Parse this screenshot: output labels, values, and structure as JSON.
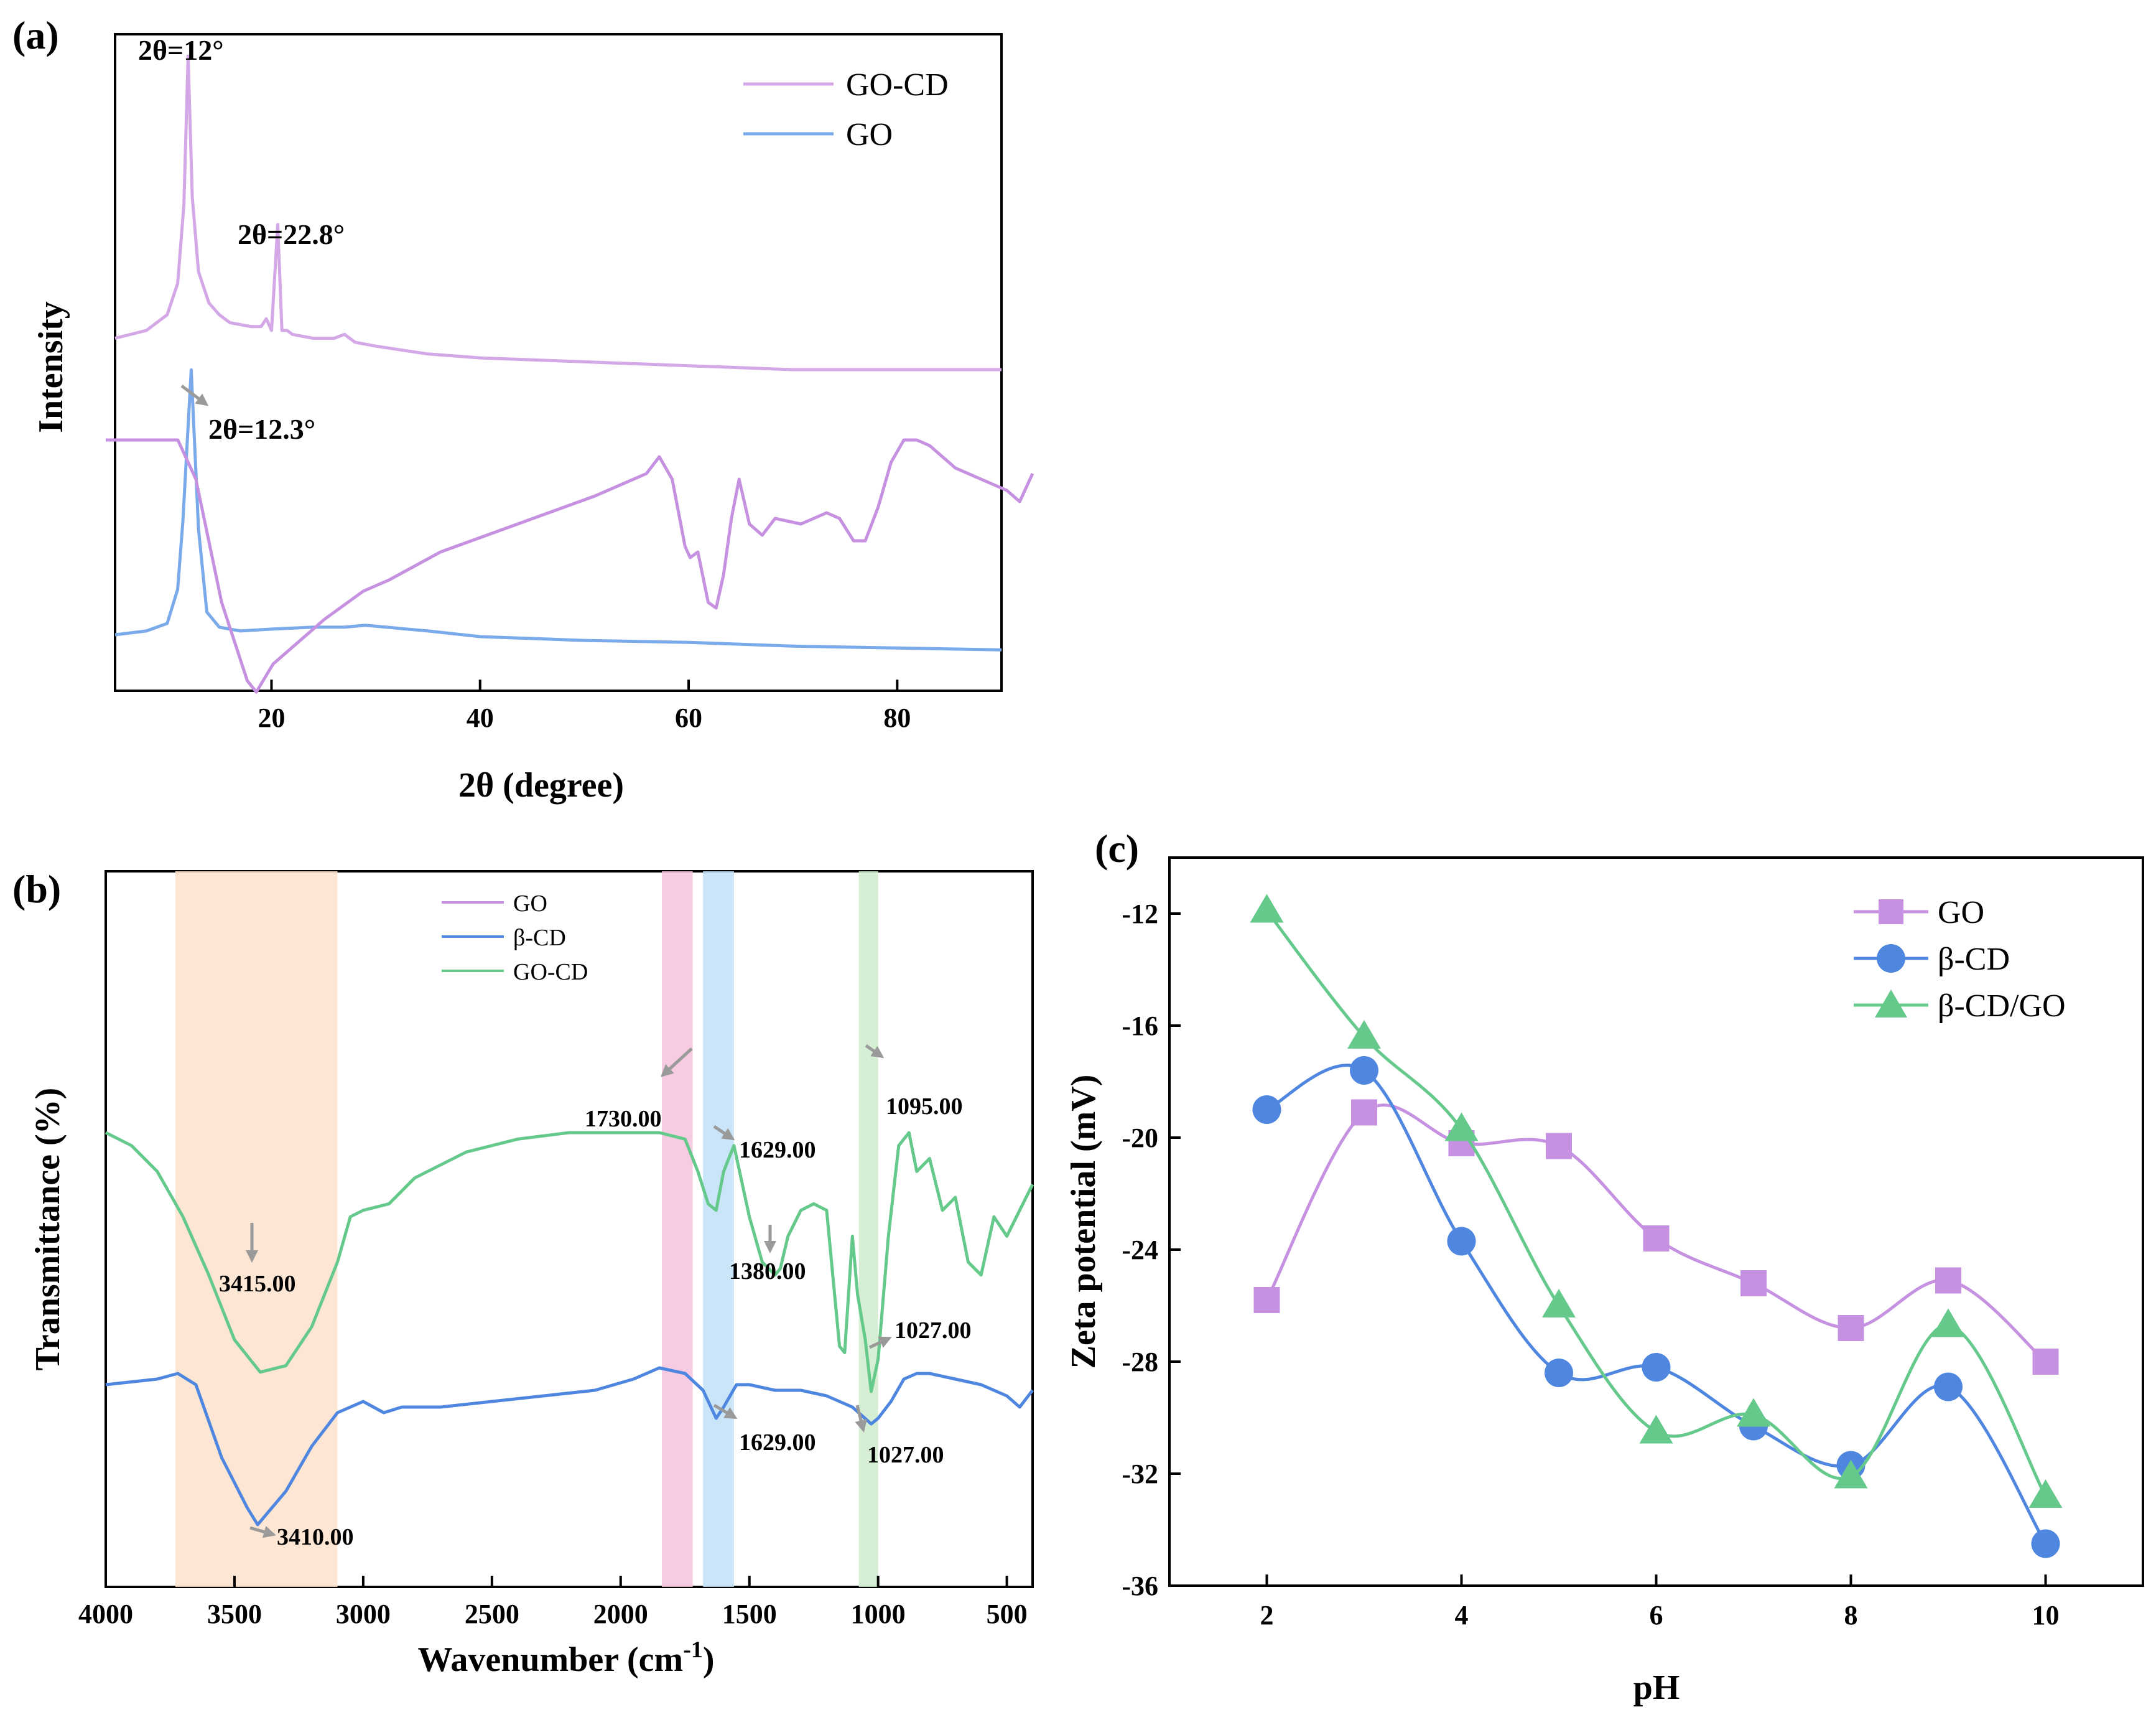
{
  "chart_data": [
    {
      "panel": "(a)",
      "type": "line",
      "xlabel": "2θ (degree)",
      "ylabel": "Intensity",
      "xlim": [
        5,
        90
      ],
      "xticks": [
        20,
        40,
        60,
        80
      ],
      "legend_position": "top-right",
      "legend": [
        "GO-CD",
        "GO"
      ],
      "annotations": [
        "2θ=12°",
        "2θ=22.8°",
        "2θ=12.3°"
      ],
      "series": [
        {
          "name": "GO-CD",
          "color": "#d4a8e6",
          "x": [
            5,
            8,
            10,
            11,
            11.6,
            12,
            12.4,
            13,
            14,
            15,
            16,
            18,
            19,
            19.5,
            20,
            20.6,
            21,
            21.5,
            22,
            24,
            26,
            27,
            28,
            30,
            35,
            40,
            50,
            60,
            70,
            80,
            90
          ],
          "y": [
            0.28,
            0.3,
            0.34,
            0.42,
            0.62,
            1.0,
            0.64,
            0.45,
            0.37,
            0.34,
            0.32,
            0.31,
            0.31,
            0.33,
            0.3,
            0.57,
            0.3,
            0.3,
            0.29,
            0.28,
            0.28,
            0.29,
            0.27,
            0.26,
            0.24,
            0.23,
            0.22,
            0.21,
            0.2,
            0.2,
            0.2
          ]
        },
        {
          "name": "GO",
          "color": "#7aaaea",
          "x": [
            5,
            8,
            10,
            11,
            11.5,
            12.3,
            13,
            13.8,
            15,
            17,
            20,
            24,
            27,
            29,
            31,
            35,
            40,
            50,
            60,
            70,
            80,
            90
          ],
          "y": [
            0.0,
            0.01,
            0.03,
            0.12,
            0.3,
            0.7,
            0.28,
            0.06,
            0.02,
            0.01,
            0.015,
            0.02,
            0.02,
            0.025,
            0.02,
            0.01,
            -0.005,
            -0.015,
            -0.02,
            -0.03,
            -0.035,
            -0.04
          ]
        }
      ]
    },
    {
      "panel": "(b)",
      "type": "line",
      "xlabel": "Wavenumber (cm",
      "xlabel_sup": "-1",
      "xlabel_close": ")",
      "ylabel": "Transmittance (%)",
      "xlim": [
        4000,
        400
      ],
      "xticks": [
        4000,
        3500,
        3000,
        2500,
        2000,
        1500,
        1000,
        500
      ],
      "legend_position": "top-center",
      "legend": [
        "GO",
        "β-CD",
        "GO-CD"
      ],
      "bands": [
        {
          "from": 3730,
          "to": 3100,
          "color": "#fde3cc"
        },
        {
          "from": 1840,
          "to": 1720,
          "color": "#f6c2dc"
        },
        {
          "from": 1680,
          "to": 1560,
          "color": "#bfe1f6"
        },
        {
          "from": 1075,
          "to": 1000,
          "color": "#cfeccd"
        }
      ],
      "annotations": [
        "3415.00",
        "1730.00",
        "1629.00",
        "1095.00",
        "1380.00",
        "1027.00",
        "1629.00",
        "1027.00",
        "3410.00"
      ],
      "series": [
        {
          "name": "GO",
          "color": "#c591e0",
          "x": [
            4000,
            3720,
            3650,
            3550,
            3450,
            3415,
            3350,
            3250,
            3150,
            3000,
            2900,
            2700,
            2400,
            2100,
            1900,
            1850,
            1800,
            1750,
            1730,
            1700,
            1660,
            1629,
            1600,
            1570,
            1540,
            1500,
            1450,
            1400,
            1300,
            1200,
            1150,
            1095,
            1050,
            1000,
            950,
            900,
            850,
            800,
            700,
            600,
            500,
            450,
            400
          ],
          "y": [
            0.87,
            0.87,
            0.8,
            0.58,
            0.44,
            0.42,
            0.47,
            0.51,
            0.55,
            0.6,
            0.62,
            0.67,
            0.72,
            0.77,
            0.81,
            0.84,
            0.8,
            0.68,
            0.66,
            0.67,
            0.58,
            0.57,
            0.63,
            0.73,
            0.8,
            0.72,
            0.7,
            0.73,
            0.72,
            0.74,
            0.73,
            0.69,
            0.69,
            0.75,
            0.83,
            0.87,
            0.87,
            0.86,
            0.82,
            0.8,
            0.78,
            0.76,
            0.81
          ]
        },
        {
          "name": "β-CD",
          "color": "#4f86e0",
          "x": [
            4000,
            3800,
            3720,
            3650,
            3550,
            3450,
            3410,
            3300,
            3200,
            3100,
            3000,
            2920,
            2850,
            2700,
            2500,
            2300,
            2100,
            1950,
            1850,
            1750,
            1680,
            1629,
            1600,
            1550,
            1500,
            1400,
            1300,
            1200,
            1100,
            1027,
            1000,
            950,
            900,
            850,
            800,
            700,
            600,
            500,
            450,
            400
          ],
          "y": [
            0.25,
            0.26,
            0.27,
            0.25,
            0.12,
            0.03,
            0.0,
            0.06,
            0.14,
            0.2,
            0.22,
            0.2,
            0.21,
            0.21,
            0.22,
            0.23,
            0.24,
            0.26,
            0.28,
            0.27,
            0.24,
            0.19,
            0.21,
            0.25,
            0.25,
            0.24,
            0.24,
            0.23,
            0.21,
            0.18,
            0.19,
            0.22,
            0.26,
            0.27,
            0.27,
            0.26,
            0.25,
            0.23,
            0.21,
            0.24
          ]
        },
        {
          "name": "GO-CD",
          "color": "#65c98c",
          "x": [
            4000,
            3900,
            3800,
            3700,
            3600,
            3500,
            3400,
            3300,
            3200,
            3100,
            3050,
            3000,
            2900,
            2800,
            2600,
            2400,
            2200,
            2000,
            1850,
            1750,
            1700,
            1660,
            1629,
            1600,
            1560,
            1500,
            1450,
            1400,
            1380,
            1350,
            1300,
            1250,
            1200,
            1150,
            1130,
            1100,
            1080,
            1050,
            1027,
            1000,
            960,
            920,
            880,
            850,
            800,
            750,
            700,
            650,
            600,
            550,
            500,
            450,
            400
          ],
          "y": [
            0.68,
            0.66,
            0.62,
            0.55,
            0.46,
            0.36,
            0.31,
            0.32,
            0.38,
            0.48,
            0.55,
            0.56,
            0.57,
            0.61,
            0.65,
            0.67,
            0.68,
            0.68,
            0.68,
            0.67,
            0.62,
            0.57,
            0.56,
            0.62,
            0.66,
            0.55,
            0.48,
            0.46,
            0.47,
            0.52,
            0.56,
            0.57,
            0.56,
            0.35,
            0.34,
            0.52,
            0.43,
            0.36,
            0.28,
            0.33,
            0.52,
            0.66,
            0.68,
            0.62,
            0.64,
            0.56,
            0.58,
            0.48,
            0.46,
            0.55,
            0.52,
            0.56,
            0.6
          ]
        }
      ]
    },
    {
      "panel": "(c)",
      "type": "line",
      "xlabel": "pH",
      "ylabel": "Zeta potential (mV)",
      "xlim": [
        1,
        11
      ],
      "ylim": [
        -36,
        -10
      ],
      "xticks": [
        2,
        4,
        6,
        8,
        10
      ],
      "yticks": [
        -12,
        -16,
        -20,
        -24,
        -28,
        -32,
        -36
      ],
      "legend_position": "top-right",
      "legend": [
        "GO",
        "β-CD",
        "β-CD/GO"
      ],
      "categories": [
        2,
        3,
        4,
        5,
        6,
        7,
        8,
        9,
        10
      ],
      "series": [
        {
          "name": "GO",
          "color": "#c591e0",
          "marker": "square",
          "values": [
            -25.8,
            -19.1,
            -20.2,
            -20.3,
            -23.6,
            -25.2,
            -26.8,
            -25.1,
            -28.0
          ]
        },
        {
          "name": "β-CD",
          "color": "#4f86e0",
          "marker": "circle",
          "values": [
            -19.0,
            -17.6,
            -23.7,
            -28.4,
            -28.2,
            -30.3,
            -31.7,
            -28.9,
            -34.5
          ]
        },
        {
          "name": "β-CD/GO",
          "color": "#65c98c",
          "marker": "triangle",
          "values": [
            -11.9,
            -16.4,
            -19.7,
            -26.0,
            -30.5,
            -29.9,
            -32.1,
            -26.7,
            -32.8
          ]
        }
      ]
    }
  ]
}
